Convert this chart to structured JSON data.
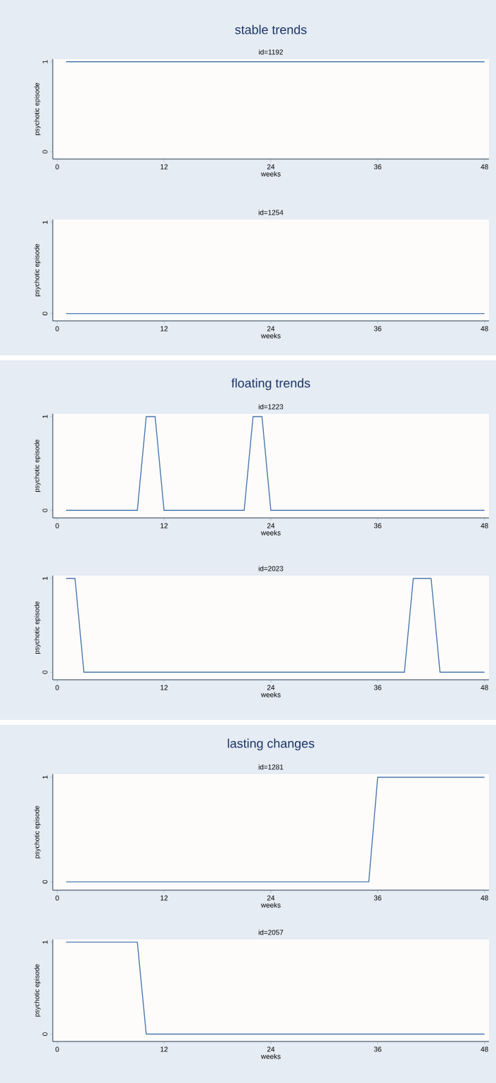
{
  "chart_data": [
    {
      "type": "line",
      "title": "stable trends",
      "subtitle": "id=1192",
      "xlabel": "weeks",
      "ylabel": "psychotic episode",
      "x": [
        1,
        48
      ],
      "values": [
        1,
        1
      ],
      "color": "#4a78b0",
      "xlim": [
        -0.5,
        48.5
      ],
      "ylim": [
        -0.08,
        1.03
      ],
      "xticks": [
        0,
        12,
        24,
        36,
        48
      ],
      "yticks": [
        0,
        1
      ]
    },
    {
      "type": "line",
      "subtitle": "id=1254",
      "xlabel": "weeks",
      "ylabel": "psychotic episode",
      "x": [
        1,
        48
      ],
      "values": [
        0,
        0
      ],
      "color": "#4a78b0",
      "xlim": [
        -0.5,
        48.5
      ],
      "ylim": [
        -0.08,
        1.03
      ],
      "xticks": [
        0,
        12,
        24,
        36,
        48
      ],
      "yticks": [
        0,
        1
      ]
    },
    {
      "type": "line",
      "title": "floating trends",
      "subtitle": "id=1223",
      "xlabel": "weeks",
      "ylabel": "psychotic episode",
      "x": [
        1,
        9,
        10,
        11,
        12,
        21,
        22,
        23,
        24,
        48
      ],
      "values": [
        0,
        0,
        1,
        1,
        0,
        0,
        1,
        1,
        0,
        0
      ],
      "color": "#4a78b0",
      "xlim": [
        -0.5,
        48.5
      ],
      "ylim": [
        -0.08,
        1.03
      ],
      "xticks": [
        0,
        12,
        24,
        36,
        48
      ],
      "yticks": [
        0,
        1
      ]
    },
    {
      "type": "line",
      "subtitle": "id=2023",
      "xlabel": "weeks",
      "ylabel": "psychotic episode",
      "x": [
        1,
        2,
        3,
        39,
        40,
        42,
        43,
        48
      ],
      "values": [
        1,
        1,
        0,
        0,
        1,
        1,
        0,
        0
      ],
      "color": "#4a78b0",
      "xlim": [
        -0.5,
        48.5
      ],
      "ylim": [
        -0.08,
        1.03
      ],
      "xticks": [
        0,
        12,
        24,
        36,
        48
      ],
      "yticks": [
        0,
        1
      ]
    },
    {
      "type": "line",
      "title": "lasting changes",
      "subtitle": "id=1281",
      "xlabel": "weeks",
      "ylabel": "psychotic episode",
      "x": [
        1,
        35,
        36,
        48
      ],
      "values": [
        0,
        0,
        1,
        1
      ],
      "color": "#4a78b0",
      "xlim": [
        -0.5,
        48.5
      ],
      "ylim": [
        -0.08,
        1.03
      ],
      "xticks": [
        0,
        12,
        24,
        36,
        48
      ],
      "yticks": [
        0,
        1
      ]
    },
    {
      "type": "line",
      "subtitle": "id=2057",
      "xlabel": "weeks",
      "ylabel": "psychotic episode",
      "x": [
        1,
        9,
        10,
        48
      ],
      "values": [
        1,
        1,
        0,
        0
      ],
      "color": "#4a78b0",
      "xlim": [
        -0.5,
        48.5
      ],
      "ylim": [
        -0.08,
        1.03
      ],
      "xticks": [
        0,
        12,
        24,
        36,
        48
      ],
      "yticks": [
        0,
        1
      ]
    }
  ]
}
